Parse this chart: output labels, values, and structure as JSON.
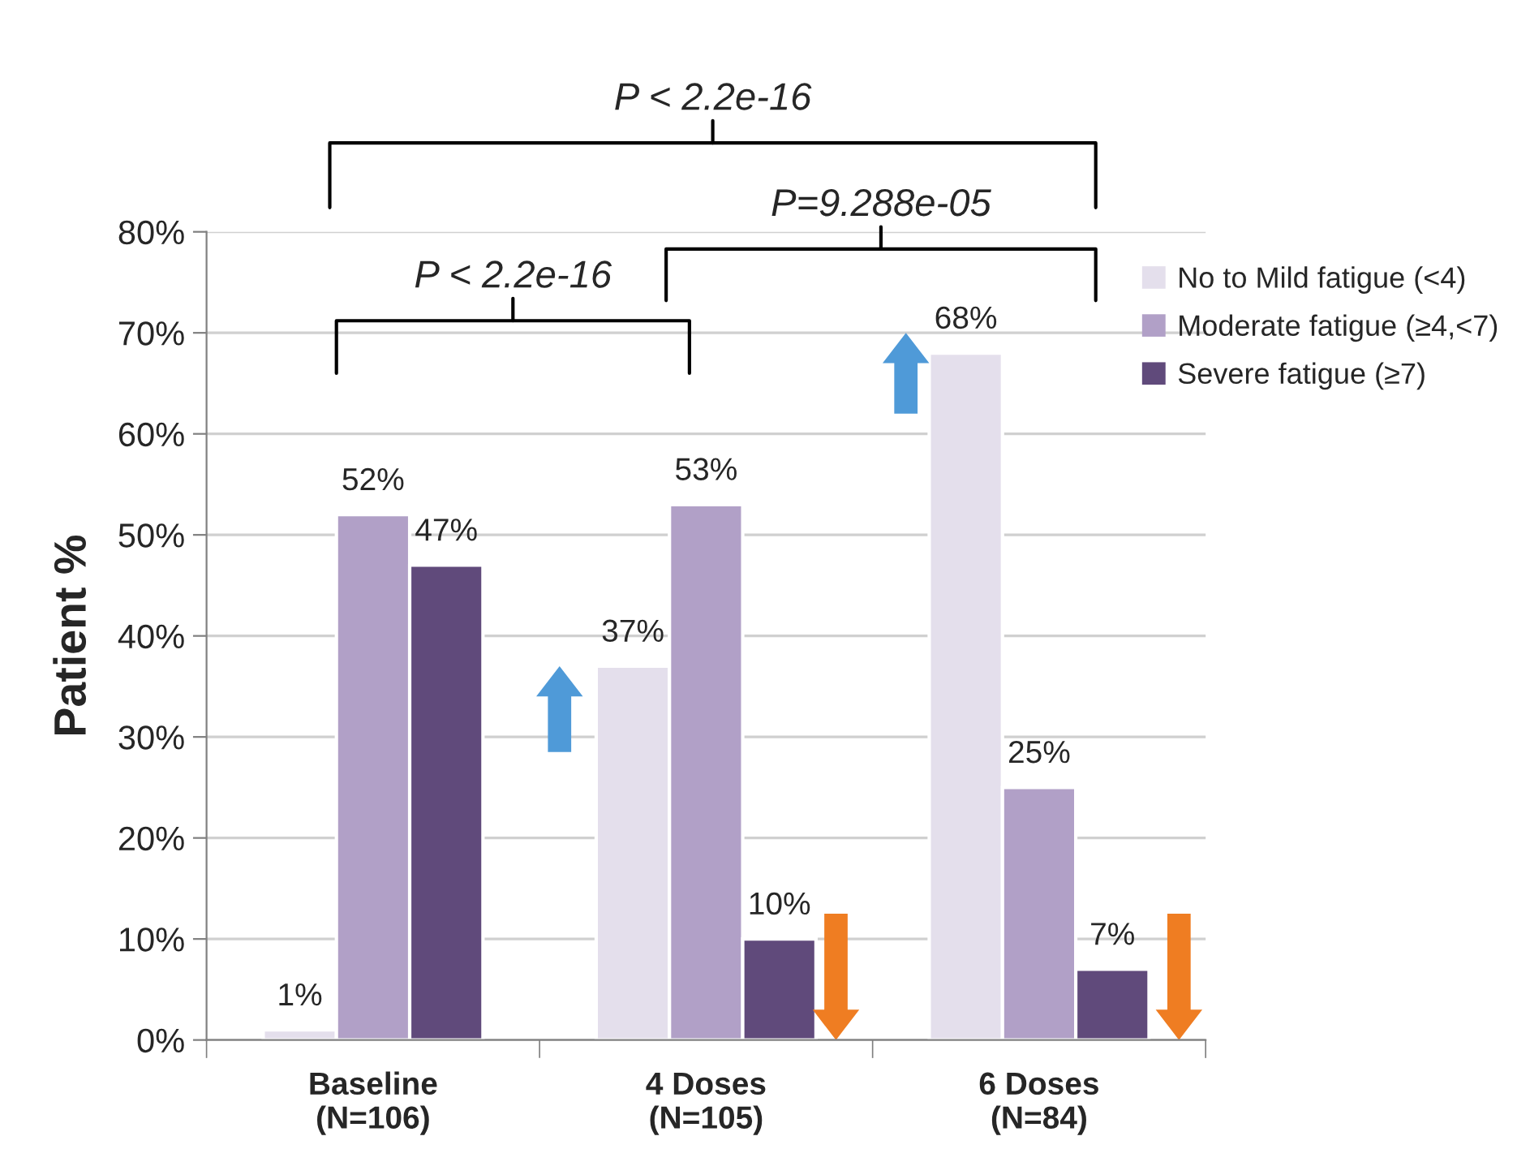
{
  "chart_data": {
    "type": "bar",
    "categories": [
      "Baseline\n(N=106)",
      "4 Doses\n(N=105)",
      "6 Doses\n(N=84)"
    ],
    "series": [
      {
        "name": "No to Mild fatigue (<4)",
        "color": "#e4dfec",
        "values": [
          1,
          37,
          68
        ]
      },
      {
        "name": "Moderate fatigue (≥4,<7)",
        "color": "#b1a0c7",
        "values": [
          52,
          53,
          25
        ]
      },
      {
        "name": "Severe fatigue (≥7)",
        "color": "#604a7b",
        "values": [
          47,
          10,
          7
        ]
      }
    ],
    "ylabel": "Patient %",
    "ylim": [
      0,
      80
    ],
    "yticks": [
      {
        "value": 0,
        "label": "0%"
      },
      {
        "value": 10,
        "label": "10%"
      },
      {
        "value": 20,
        "label": "20%"
      },
      {
        "value": 30,
        "label": "30%"
      },
      {
        "value": 40,
        "label": "40%"
      },
      {
        "value": 50,
        "label": "50%"
      },
      {
        "value": 60,
        "label": "60%"
      },
      {
        "value": 70,
        "label": "70%"
      },
      {
        "value": 80,
        "label": "80%"
      }
    ],
    "value_labels": [
      [
        "1%",
        "37%",
        "68%"
      ],
      [
        "52%",
        "53%",
        "25%"
      ],
      [
        "47%",
        "10%",
        "7%"
      ]
    ],
    "annotations": [
      "P < 2.2e-16",
      "P=9.288e-05",
      "P < 2.2e-16"
    ],
    "grid": "y",
    "legend": "top right"
  }
}
